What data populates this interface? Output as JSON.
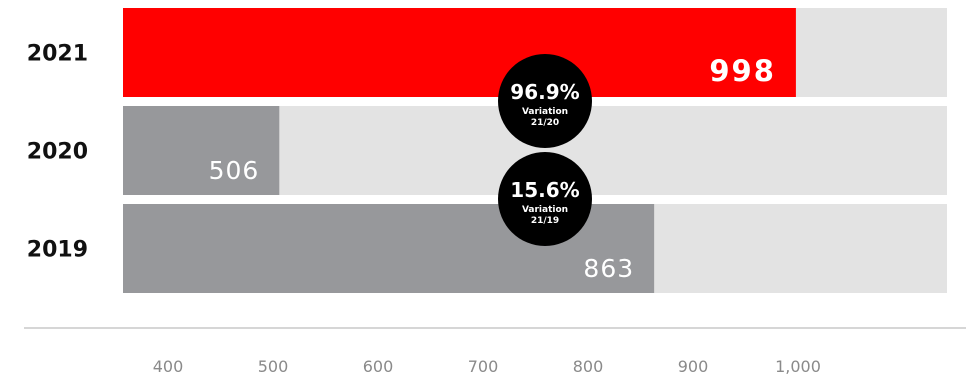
{
  "chart_data": {
    "type": "bar",
    "orientation": "horizontal",
    "categories": [
      "2021",
      "2020",
      "2019"
    ],
    "values": [
      998,
      506,
      863
    ],
    "xlim": [
      300,
      1020
    ],
    "x_ticks": [
      400,
      500,
      600,
      700,
      800,
      900,
      1000
    ],
    "x_tick_labels": [
      "400",
      "500",
      "600",
      "700",
      "800",
      "900",
      "1,000"
    ],
    "grid": false,
    "legend": "none",
    "annotations": [
      {
        "text": "96.9%",
        "sub1": "Variation",
        "sub2": "21/20"
      },
      {
        "text": "15.6%",
        "sub1": "Variation",
        "sub2": "21/19"
      }
    ]
  },
  "colors": {
    "highlight_bar": "#ff0000",
    "bar": "#97989b",
    "track": "#e3e3e3",
    "badge": "#000000",
    "axis_line": "#c8c8c8"
  }
}
